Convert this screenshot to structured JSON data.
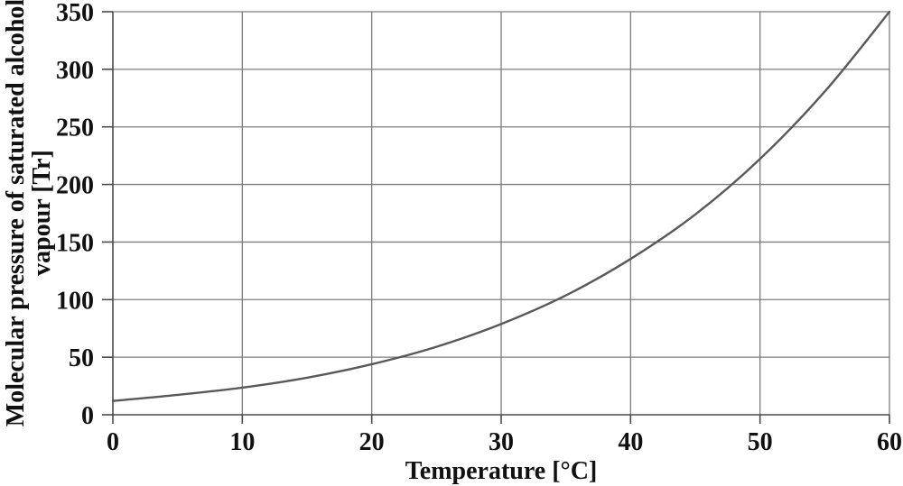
{
  "chart_data": {
    "type": "line",
    "title": "",
    "xlabel": "Temperature [°C]",
    "ylabel": "Molecular pressure of saturated alcohol vapour [Tr]",
    "ylabel_lines": [
      "Molecular pressure of saturated alcohol",
      "vapour [Tr]"
    ],
    "xlim": [
      0,
      60
    ],
    "ylim": [
      0,
      350
    ],
    "x_ticks": [
      0,
      10,
      20,
      30,
      40,
      50,
      60
    ],
    "y_ticks": [
      0,
      50,
      100,
      150,
      200,
      250,
      300,
      350
    ],
    "grid": true,
    "legend": false,
    "series": [
      {
        "name": "saturated-alcohol-vapour-pressure",
        "x": [
          0,
          5,
          10,
          15,
          20,
          25,
          30,
          35,
          40,
          45,
          50,
          55,
          60
        ],
        "y": [
          12,
          17.3,
          23.6,
          32.2,
          43.9,
          59,
          78.8,
          103.7,
          135.3,
          174,
          222.2,
          280.6,
          350
        ]
      }
    ],
    "colors": {
      "curve": "#595959",
      "grid": "#7d7d7d",
      "axis": "#4a4a4a",
      "text": "#111111",
      "background": "#ffffff"
    }
  }
}
